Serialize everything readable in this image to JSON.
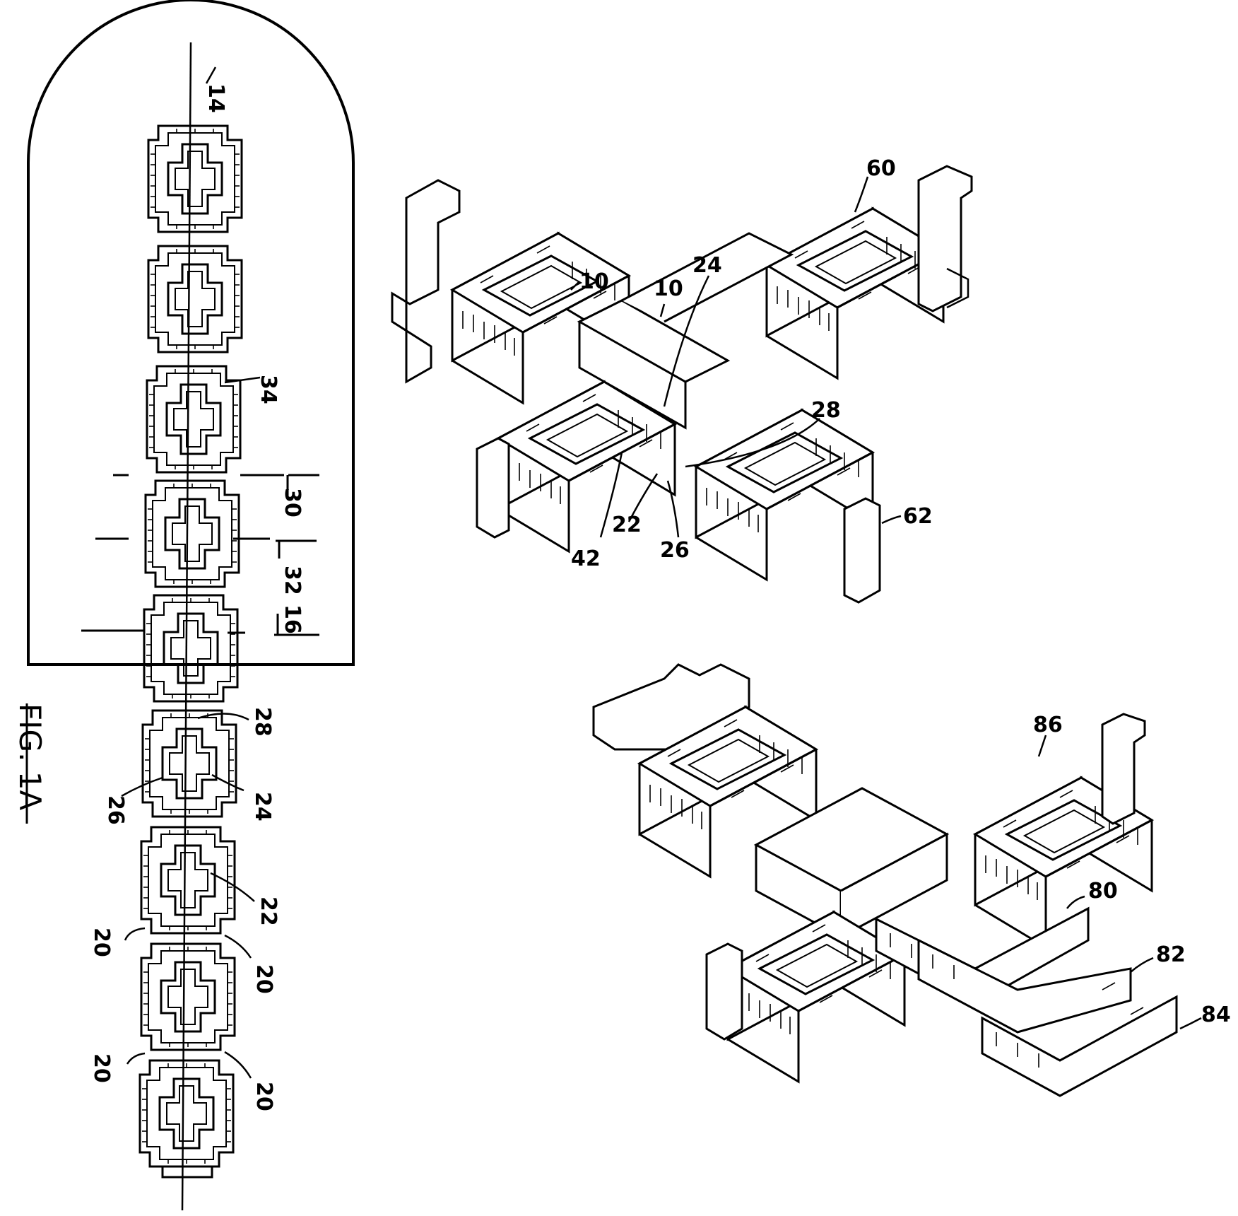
{
  "figure": {
    "caption": "FIG. 1A"
  },
  "strip_labels": {
    "l14": "14",
    "l34": "34",
    "l30": "30",
    "l32": "32",
    "l16": "16",
    "l28": "28",
    "l24": "24",
    "l26": "26",
    "l22": "22",
    "l20a": "20",
    "l20b": "20",
    "l20c": "20",
    "l20d": "20"
  },
  "upper_assembly_labels": {
    "l60": "60",
    "l10a": "10",
    "l10b": "10",
    "l24": "24",
    "l28": "28",
    "l42": "42",
    "l22": "22",
    "l26": "26",
    "l62": "62"
  },
  "lower_assembly_labels": {
    "l86": "86",
    "l80": "80",
    "l82": "82",
    "l84": "84"
  }
}
